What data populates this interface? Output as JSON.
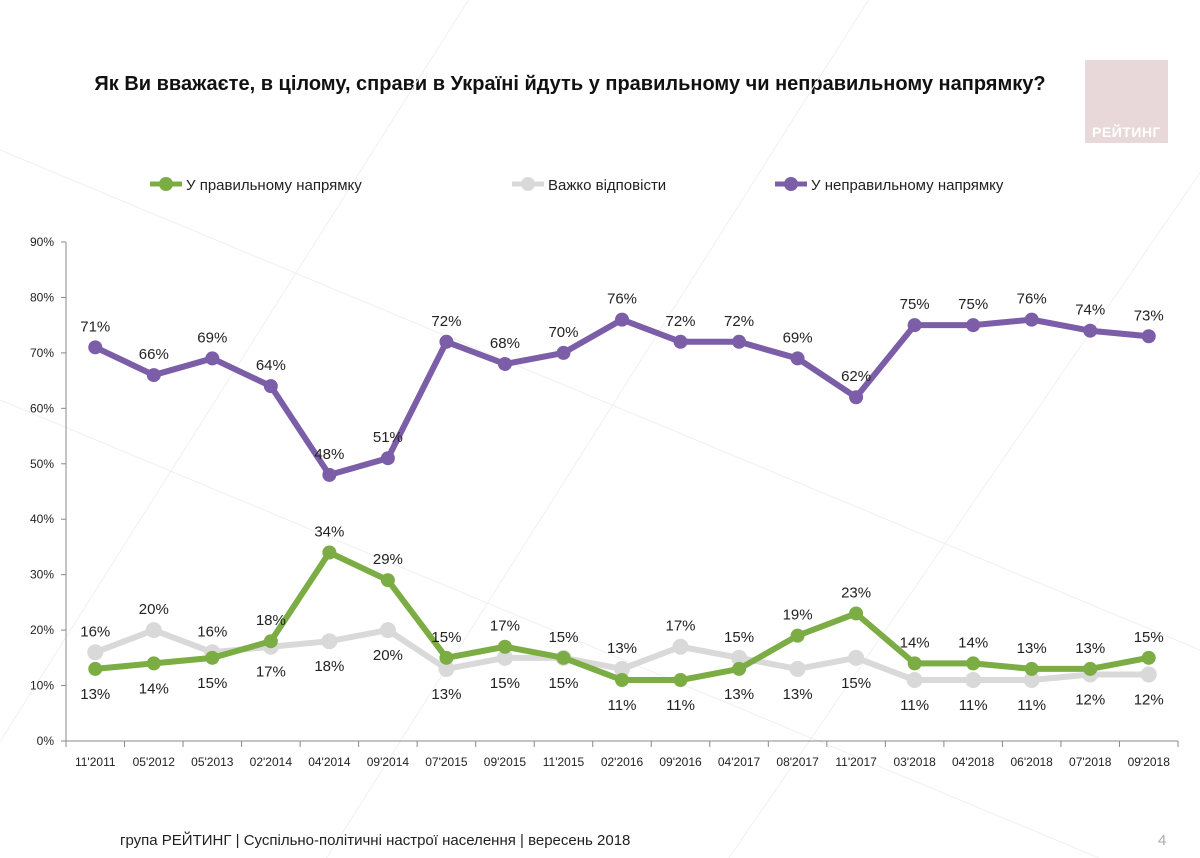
{
  "title": "Як Ви вважаєте, в цілому, справи в Україні йдуть у правильному чи неправильному напрямку?",
  "logo_text": "РЕЙТИНГ",
  "footer": "група РЕЙТИНГ |  Суспільно-політичні настрої населення | вересень  2018",
  "page_number": "4",
  "chart_data": {
    "type": "line",
    "title": "Як Ви вважаєте, в цілому, справи в Україні йдуть у правильному чи неправильному напрямку?",
    "xlabel": "",
    "ylabel": "",
    "ylim": [
      0,
      90
    ],
    "yticks": [
      "0%",
      "10%",
      "20%",
      "30%",
      "40%",
      "50%",
      "60%",
      "70%",
      "80%",
      "90%"
    ],
    "grid": false,
    "legend": "top",
    "categories": [
      "11'2011",
      "05'2012",
      "05'2013",
      "02'2014",
      "04'2014",
      "09'2014",
      "07'2015",
      "09'2015",
      "11'2015",
      "02'2016",
      "09'2016",
      "04'2017",
      "08'2017",
      "11'2017",
      "03'2018",
      "04'2018",
      "06'2018",
      "07'2018",
      "09'2018"
    ],
    "series": [
      {
        "name": "У правильному напрямку",
        "color": "#7cad45",
        "values": [
          13,
          14,
          15,
          18,
          34,
          29,
          15,
          17,
          15,
          11,
          11,
          13,
          19,
          23,
          14,
          14,
          13,
          13,
          15
        ]
      },
      {
        "name": "Важко відповісти",
        "color": "#d9d9d9",
        "values": [
          16,
          20,
          16,
          17,
          18,
          20,
          13,
          15,
          15,
          13,
          17,
          15,
          13,
          15,
          11,
          11,
          11,
          12,
          12
        ]
      },
      {
        "name": "У неправильному напрямку",
        "color": "#7b5ea7",
        "values": [
          71,
          66,
          69,
          64,
          48,
          51,
          72,
          68,
          70,
          76,
          72,
          72,
          69,
          62,
          75,
          75,
          76,
          74,
          73
        ]
      }
    ]
  }
}
